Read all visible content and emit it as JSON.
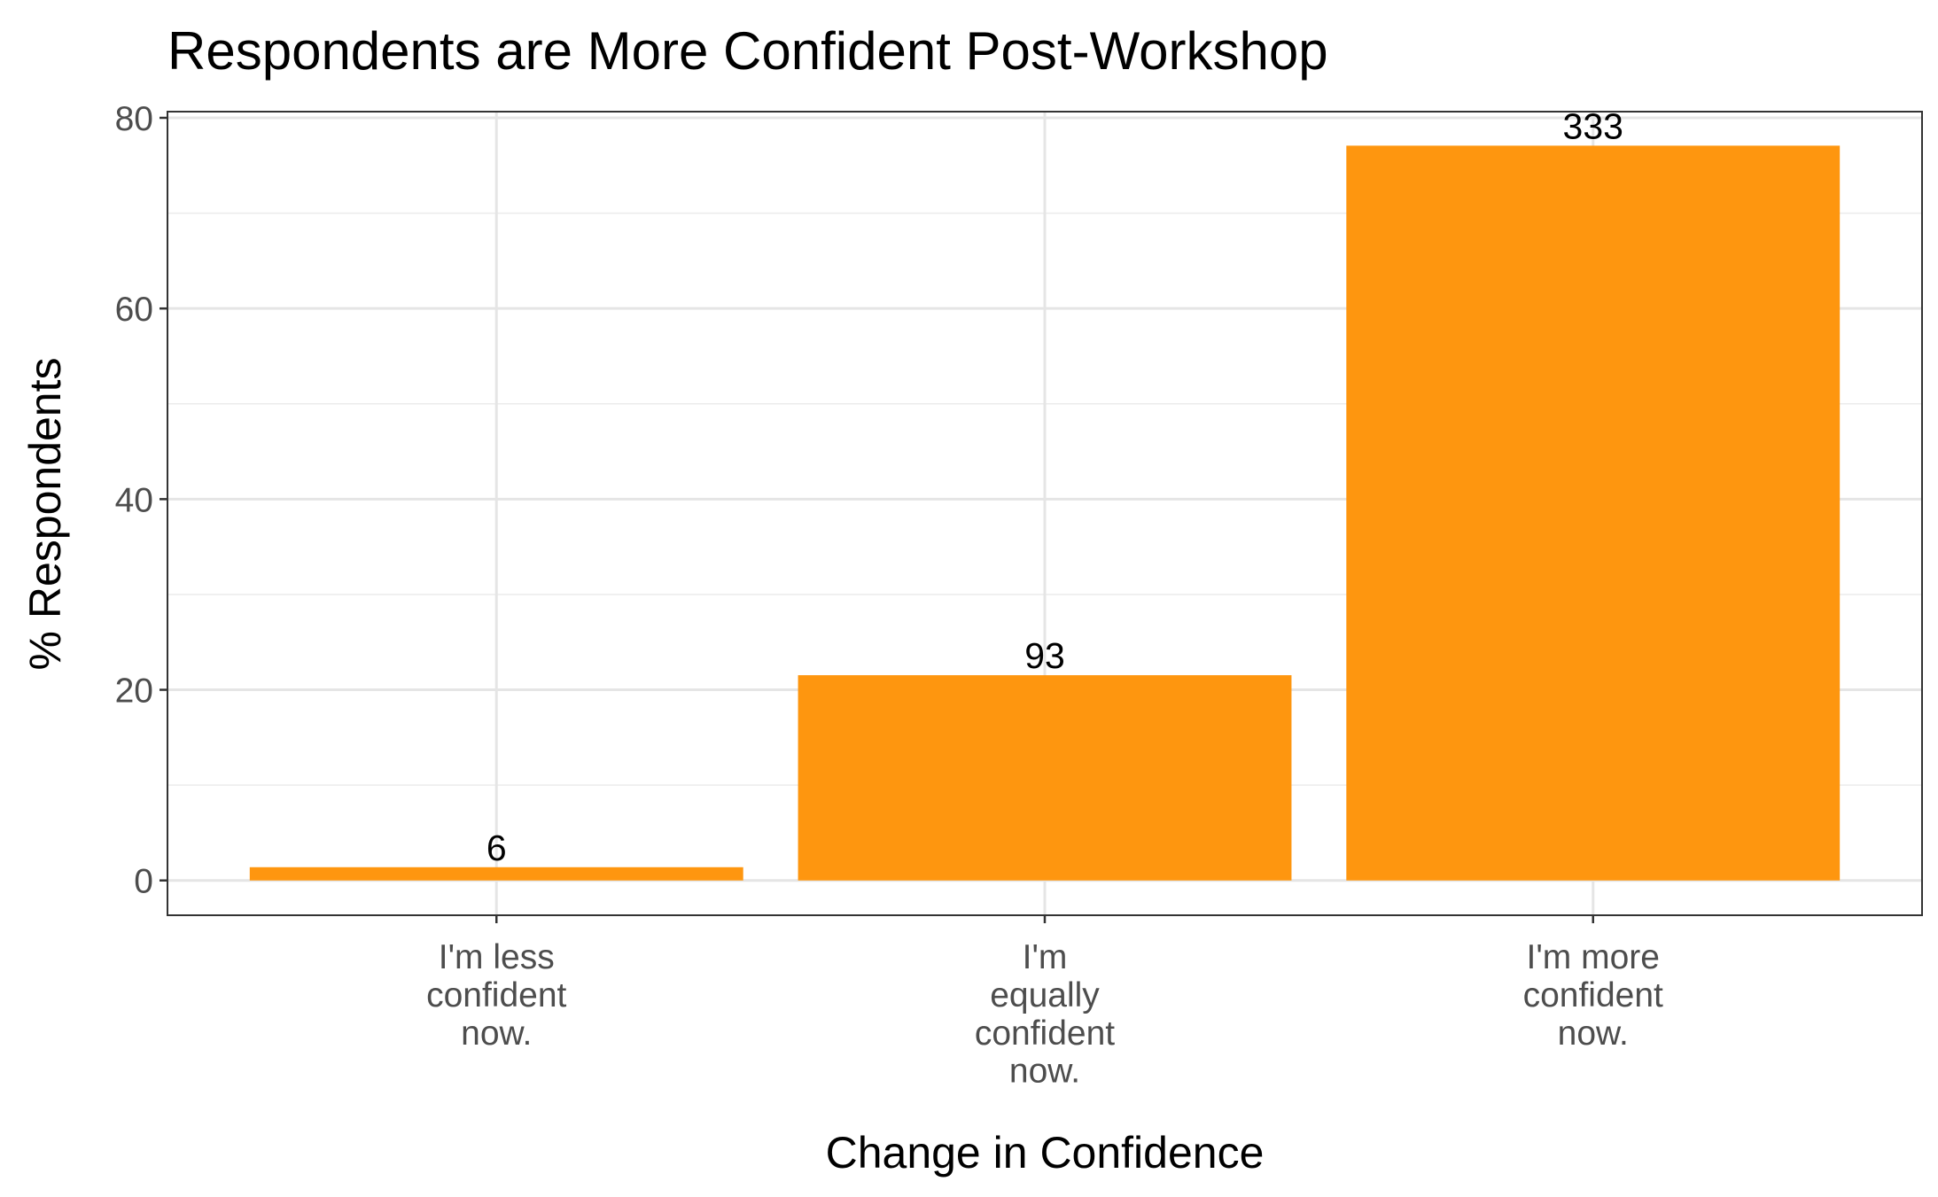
{
  "chart_data": {
    "type": "bar",
    "title": "Respondents are More Confident Post-Workshop",
    "x_label": "Change in Confidence",
    "y_label": "% Respondents",
    "categories": [
      "I'm less\nconfident\nnow.",
      "I'm\nequally\nconfident\nnow.",
      "I'm more\nconfident\nnow."
    ],
    "values": [
      1.39,
      21.53,
      77.08
    ],
    "data_labels": [
      6,
      93,
      333
    ],
    "color": "#fe960f",
    "ylim": [
      -3.65,
      80.65
    ],
    "yticks": [
      0,
      20,
      40,
      60,
      80
    ],
    "minor_yticks": [
      10,
      30,
      50,
      70
    ],
    "grid": true
  }
}
